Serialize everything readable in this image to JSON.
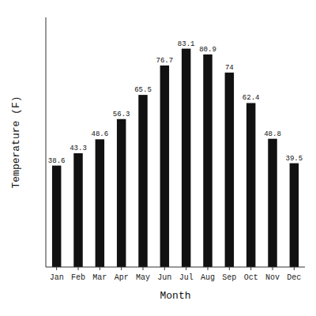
{
  "chart_data": {
    "type": "bar",
    "categories": [
      "Jan",
      "Feb",
      "Mar",
      "Apr",
      "May",
      "Jun",
      "Jul",
      "Aug",
      "Sep",
      "Oct",
      "Nov",
      "Dec"
    ],
    "values": [
      38.6,
      43.3,
      48.6,
      56.3,
      65.5,
      76.7,
      83.1,
      80.9,
      74.0,
      62.4,
      48.8,
      39.5
    ],
    "color": "#111111",
    "x_label": "Month",
    "y_label": "Temperature (F)",
    "ylim": [
      0,
      95
    ],
    "grid": false,
    "data_labels": true,
    "tick_labels": "x"
  }
}
